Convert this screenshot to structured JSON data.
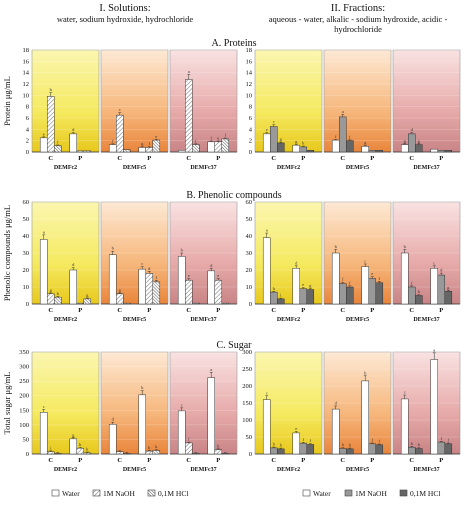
{
  "headers": {
    "left_title": "I. Solutions:",
    "left_subtitle": "water, sodium hydroxide, hydrochloride",
    "right_title": "II. Fractions:",
    "right_subtitle_1": "aqueous - water, alkalic - sodium hydroxide, acidic -",
    "right_subtitle_2": "hydrochloride"
  },
  "sections": {
    "a": "A.   Proteins",
    "b": "B.   Phenolic compounds",
    "c": "C.   Sugar"
  },
  "legend": {
    "water": "Water",
    "naoh": "1M NaOH",
    "hcl": "0,1M HCl"
  },
  "colors": {
    "water": "#ffffff",
    "naoh_solution": "hatched",
    "hcl_solution": "hatched-dense",
    "naoh_fraction": "#999999",
    "hcl_fraction": "#666666",
    "panel_dem2": "yellow gradient",
    "panel_dem5": "orange gradient",
    "panel_dem37": "rose gradient"
  },
  "chart_data": [
    {
      "type": "bar",
      "section": "A",
      "side": "Solutions",
      "ylabel": "Protein μg/mL",
      "ylim": [
        0,
        18
      ],
      "yticks": [
        0,
        2,
        4,
        6,
        8,
        10,
        12,
        14,
        16,
        18
      ],
      "groups": [
        "DEMFc2",
        "DEMFc5",
        "DEMFc37"
      ],
      "categories": [
        "C",
        "P"
      ],
      "series": [
        {
          "name": "Water",
          "values": [
            [
              2.5,
              3.2
            ],
            [
              1.3,
              0.8
            ],
            [
              0.3,
              1.8
            ]
          ],
          "labels": [
            [
              "e",
              "d"
            ],
            [
              "f",
              "g"
            ],
            [
              "",
              "f"
            ]
          ]
        },
        {
          "name": "1M NaOH",
          "values": [
            [
              9.8,
              0.2
            ],
            [
              6.5,
              0.8
            ],
            [
              12.8,
              1.8
            ]
          ],
          "labels": [
            [
              "b",
              ""
            ],
            [
              "c",
              "f"
            ],
            [
              "a",
              "e"
            ]
          ]
        },
        {
          "name": "0,1M HCl",
          "values": [
            [
              1.1,
              0.2
            ],
            [
              0.4,
              2.1
            ],
            [
              1.3,
              2.3
            ]
          ],
          "labels": [
            [
              "f",
              ""
            ],
            [
              "",
              "e"
            ],
            [
              "f",
              "f"
            ]
          ]
        }
      ]
    },
    {
      "type": "bar",
      "section": "A",
      "side": "Fractions",
      "ylim": [
        0,
        18
      ],
      "yticks": [
        0,
        2,
        4,
        6,
        8,
        10,
        12,
        14,
        16,
        18
      ],
      "groups": [
        "DEMFc2",
        "DEMFc5",
        "DEMFc37"
      ],
      "categories": [
        "C",
        "P"
      ],
      "series": [
        {
          "name": "Water",
          "values": [
            [
              3.2,
              1.2
            ],
            [
              2.1,
              1.0
            ],
            [
              1.3,
              0.5
            ]
          ],
          "labels": [
            [
              "e",
              "g"
            ],
            [
              "f",
              "g"
            ],
            [
              "g",
              "g"
            ]
          ]
        },
        {
          "name": "1M NaOH",
          "values": [
            [
              4.5,
              0.9
            ],
            [
              6.2,
              0.3
            ],
            [
              3.2,
              0.3
            ]
          ],
          "labels": [
            [
              "c",
              "h"
            ],
            [
              "a",
              ""
            ],
            [
              "d",
              ""
            ]
          ]
        },
        {
          "name": "0,1M HCl",
          "values": [
            [
              1.6,
              0.3
            ],
            [
              2.0,
              0.3
            ],
            [
              1.3,
              0.3
            ]
          ],
          "labels": [
            [
              "g",
              ""
            ],
            [
              "f",
              ""
            ],
            [
              "g",
              ""
            ]
          ]
        }
      ]
    },
    {
      "type": "bar",
      "section": "B",
      "side": "Solutions",
      "ylabel": "Phenolic compounds μg/mL",
      "ylim": [
        0,
        60
      ],
      "yticks": [
        0,
        10,
        20,
        30,
        40,
        50,
        60
      ],
      "groups": [
        "DEMFc2",
        "DEMFc5",
        "DEMFc37"
      ],
      "categories": [
        "C",
        "P"
      ],
      "series": [
        {
          "name": "Water",
          "values": [
            [
              38,
              20
            ],
            [
              29,
              20.5
            ],
            [
              28,
              19.5
            ]
          ],
          "labels": [
            [
              "a",
              "d"
            ],
            [
              "b",
              "c"
            ],
            [
              "b",
              "d"
            ]
          ]
        },
        {
          "name": "1M NaOH",
          "values": [
            [
              6,
              0.5
            ],
            [
              6,
              18
            ],
            [
              14,
              14
            ]
          ],
          "labels": [
            [
              "g",
              ""
            ],
            [
              "g",
              "d"
            ],
            [
              "e",
              "e"
            ]
          ]
        },
        {
          "name": "0,1M HCl",
          "values": [
            [
              4,
              3
            ],
            [
              0.5,
              13
            ],
            [
              0.5,
              0.5
            ]
          ],
          "labels": [
            [
              "h",
              "g"
            ],
            [
              "",
              "f"
            ],
            [
              "",
              ""
            ]
          ]
        }
      ]
    },
    {
      "type": "bar",
      "section": "B",
      "side": "Fractions",
      "ylim": [
        0,
        60
      ],
      "yticks": [
        0,
        10,
        20,
        30,
        40,
        50,
        60
      ],
      "groups": [
        "DEMFc2",
        "DEMFc5",
        "DEMFc37"
      ],
      "categories": [
        "C",
        "P"
      ],
      "series": [
        {
          "name": "Water",
          "values": [
            [
              39,
              21
            ],
            [
              30,
              22
            ],
            [
              30,
              21
            ]
          ],
          "labels": [
            [
              "a",
              "d"
            ],
            [
              "b",
              "c"
            ],
            [
              "b",
              "c"
            ]
          ]
        },
        {
          "name": "1M NaOH",
          "values": [
            [
              7,
              9
            ],
            [
              12,
              15
            ],
            [
              10,
              17
            ]
          ],
          "labels": [
            [
              "h",
              "e"
            ],
            [
              "f",
              "e"
            ],
            [
              "f",
              "d"
            ]
          ]
        },
        {
          "name": "0,1M HCl",
          "values": [
            [
              3,
              8.5
            ],
            [
              10,
              12.5
            ],
            [
              5,
              7.5
            ]
          ],
          "labels": [
            [
              "i",
              "g"
            ],
            [
              "f",
              "f"
            ],
            [
              "h",
              "g"
            ]
          ]
        }
      ]
    },
    {
      "type": "bar",
      "section": "C",
      "side": "Solutions",
      "ylabel": "Total sugar μg/mL",
      "ylim": [
        0,
        350
      ],
      "yticks": [
        0,
        50,
        100,
        150,
        200,
        250,
        300,
        350
      ],
      "groups": [
        "DEMFc2",
        "DEMFc5",
        "DEMFc37"
      ],
      "categories": [
        "C",
        "P"
      ],
      "series": [
        {
          "name": "Water",
          "values": [
            [
              143,
              52
            ],
            [
              102,
              203
            ],
            [
              148,
              262
            ]
          ],
          "labels": [
            [
              "c",
              "g"
            ],
            [
              "d",
              "b"
            ],
            [
              "c",
              "a"
            ]
          ]
        },
        {
          "name": "1M NaOH",
          "values": [
            [
              8,
              20
            ],
            [
              8,
              10
            ],
            [
              38,
              15
            ]
          ],
          "labels": [
            [
              "i",
              "h"
            ],
            [
              "",
              "h"
            ],
            [
              "f",
              "h"
            ]
          ]
        },
        {
          "name": "0,1M HCl",
          "values": [
            [
              2,
              4
            ],
            [
              2,
              12
            ],
            [
              2,
              2
            ]
          ],
          "labels": [
            [
              "",
              "k"
            ],
            [
              "",
              "k"
            ],
            [
              "",
              ""
            ]
          ]
        }
      ]
    },
    {
      "type": "bar",
      "section": "C",
      "side": "Fractions",
      "ylim": [
        0,
        300
      ],
      "yticks": [
        0,
        50,
        100,
        150,
        200,
        250,
        300
      ],
      "groups": [
        "DEMFc2",
        "DEMFc5",
        "DEMFc37"
      ],
      "categories": [
        "C",
        "P"
      ],
      "series": [
        {
          "name": "Water",
          "values": [
            [
              160,
              62
            ],
            [
              132,
              215
            ],
            [
              162,
              278
            ]
          ],
          "labels": [
            [
              "c",
              "e"
            ],
            [
              "d",
              "b"
            ],
            [
              "c",
              "a"
            ]
          ]
        },
        {
          "name": "1M NaOH",
          "values": [
            [
              18,
              32
            ],
            [
              16,
              30
            ],
            [
              20,
              35
            ]
          ],
          "labels": [
            [
              "h",
              "f"
            ],
            [
              "h",
              "f"
            ],
            [
              "h",
              "f"
            ]
          ]
        },
        {
          "name": "0,1M HCl",
          "values": [
            [
              15,
              28
            ],
            [
              15,
              27
            ],
            [
              16,
              30
            ]
          ],
          "labels": [
            [
              "h",
              "f"
            ],
            [
              "h",
              "f"
            ],
            [
              "h",
              "f"
            ]
          ]
        }
      ]
    }
  ]
}
